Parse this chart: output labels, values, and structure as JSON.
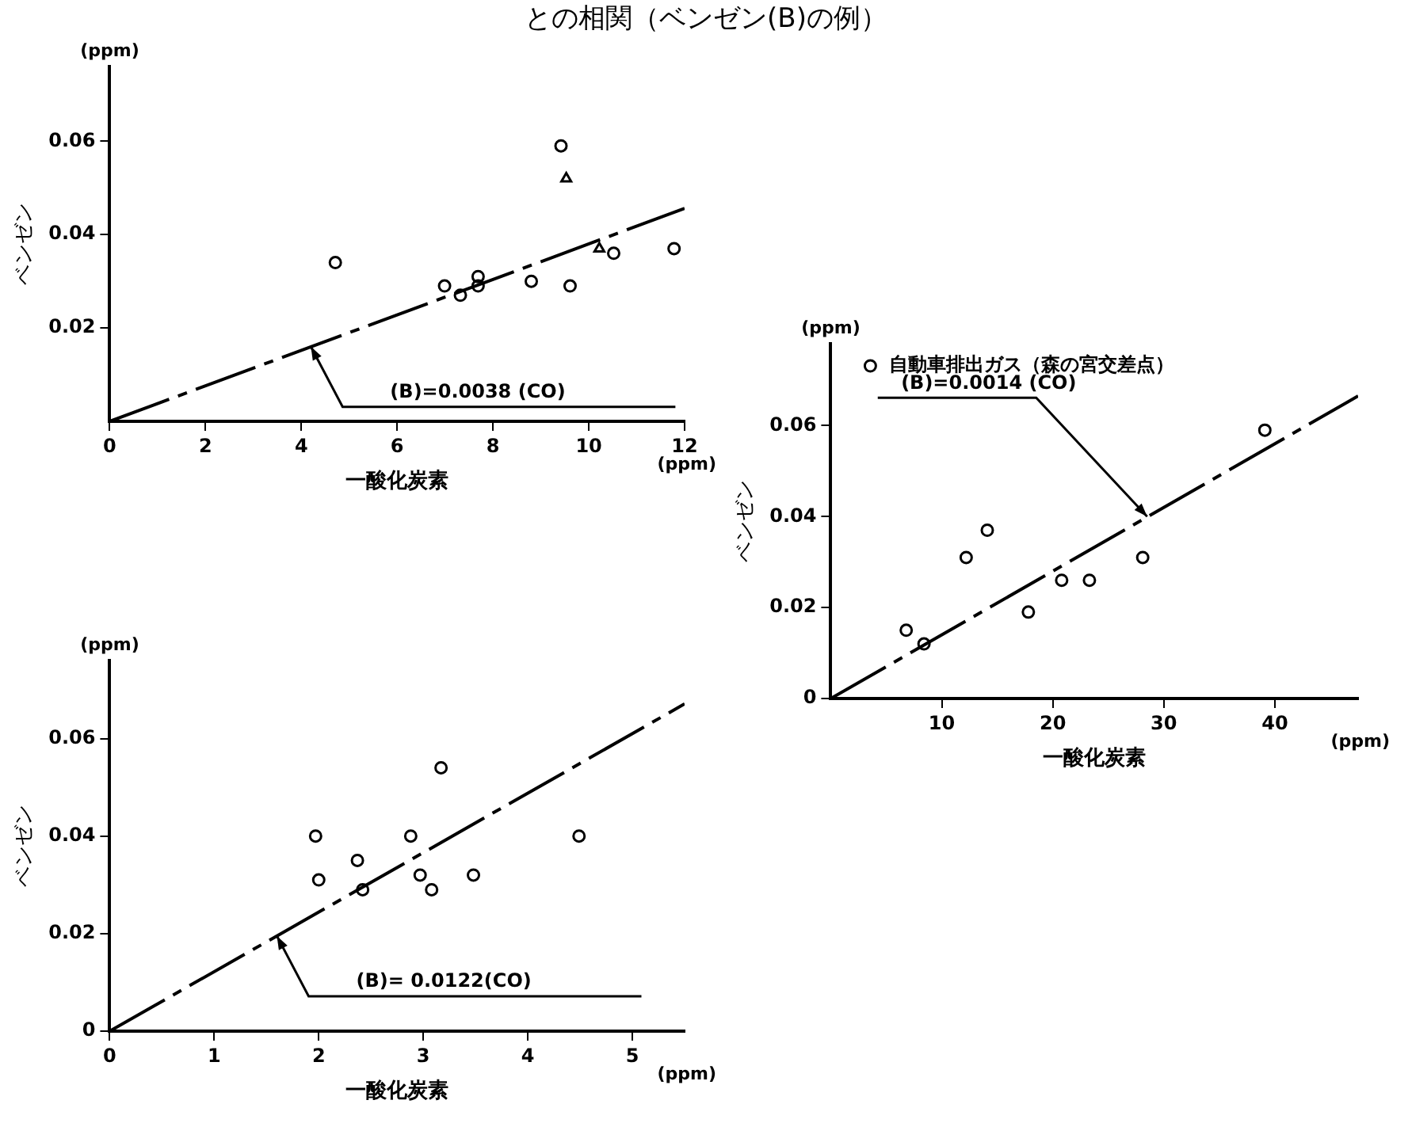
{
  "chart_data": [
    {
      "type": "scatter",
      "title": "との相関（ベンゼン(B)の例）",
      "xlabel": "一酸化炭素",
      "ylabel": "ベンゼン",
      "xlim": [
        0,
        12
      ],
      "ylim": [
        0,
        0.076
      ],
      "xticks": [
        0,
        2,
        4,
        6,
        8,
        10,
        12
      ],
      "yticks": [
        0.02,
        0.04,
        0.06
      ],
      "grid": false,
      "legend": false,
      "line_style": "dashed",
      "annotations": [
        "(ppm)",
        "(ppm)",
        {
          "text": "(B)=0.0038 (CO)",
          "x": 4.2,
          "y": 0.016
        }
      ],
      "series": [
        {
          "marker": "circle",
          "color": "#000000",
          "x": [
            4.71,
            6.99,
            7.32,
            7.69,
            7.69,
            8.8,
            9.42,
            9.61,
            10.52,
            11.78
          ],
          "values": [
            0.034,
            0.029,
            0.027,
            0.031,
            0.029,
            0.03,
            0.059,
            0.029,
            0.036,
            0.037
          ]
        },
        {
          "marker": "triangle",
          "color": "#000000",
          "x": [
            9.53,
            10.22
          ],
          "values": [
            0.052,
            0.037
          ]
        },
        {
          "type": "line",
          "color": "#000000",
          "x": [
            0,
            12
          ],
          "values": [
            0,
            0.0456
          ]
        }
      ]
    },
    {
      "type": "scatter",
      "xlabel": "一酸化炭素",
      "ylabel": "ベンゼン",
      "xlim": [
        0,
        5.5
      ],
      "ylim": [
        0,
        0.076
      ],
      "xticks": [
        0,
        1,
        2,
        3,
        4,
        5
      ],
      "yticks": [
        0,
        0.02,
        0.04,
        0.06
      ],
      "grid": false,
      "legend": false,
      "line_style": "dashed",
      "annotations": [
        "(ppm)",
        "(ppm)",
        {
          "text": "(B)= 0.0122(CO)",
          "x": 1.6,
          "y": 0.0195
        }
      ],
      "series": [
        {
          "marker": "circle",
          "color": "#000000",
          "x": [
            1.97,
            2.0,
            2.37,
            2.42,
            2.88,
            2.97,
            3.08,
            3.17,
            3.48,
            4.49
          ],
          "values": [
            0.04,
            0.031,
            0.035,
            0.029,
            0.04,
            0.032,
            0.029,
            0.054,
            0.032,
            0.04
          ]
        },
        {
          "type": "line",
          "color": "#000000",
          "x": [
            0,
            5.5
          ],
          "values": [
            0,
            0.0671
          ]
        }
      ]
    },
    {
      "type": "scatter",
      "xlabel": "一酸化炭素",
      "ylabel": "ベンゼン",
      "xlim": [
        0,
        47.5
      ],
      "ylim": [
        0,
        0.078
      ],
      "xticks": [
        10,
        20,
        30,
        40
      ],
      "yticks": [
        0,
        0.02,
        0.04,
        0.06
      ],
      "grid": false,
      "legend": "top left",
      "line_style": "dashed",
      "annotations": [
        "(ppm)",
        "(ppm)",
        {
          "text": "(B)=0.0014 (CO)",
          "x": 28.5,
          "y": 0.04
        }
      ],
      "series": [
        {
          "name": "自動車排出ガス（森の宮交差点）",
          "marker": "circle",
          "color": "#000000",
          "x": [
            6.8,
            8.4,
            12.2,
            14.1,
            17.8,
            20.8,
            23.3,
            28.1,
            39.1
          ],
          "values": [
            0.015,
            0.012,
            0.031,
            0.037,
            0.019,
            0.026,
            0.026,
            0.031,
            0.059
          ]
        },
        {
          "type": "line",
          "color": "#000000",
          "x": [
            0,
            47.5
          ],
          "values": [
            0,
            0.0665
          ]
        }
      ]
    }
  ]
}
